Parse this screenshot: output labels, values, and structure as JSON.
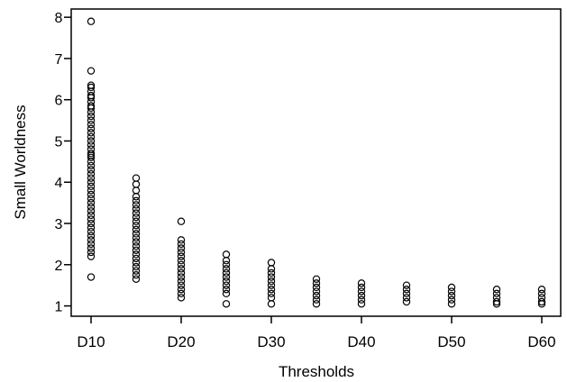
{
  "chart_data": {
    "type": "scatter",
    "title": "",
    "xlabel": "Thresholds",
    "ylabel": "Small Worldness",
    "x_tick_labels": [
      "D10",
      "D20",
      "D30",
      "D40",
      "D50",
      "D60"
    ],
    "y_tick_labels": [
      "1",
      "2",
      "3",
      "4",
      "5",
      "6",
      "7",
      "8"
    ],
    "ylim": [
      0.75,
      8.2
    ],
    "grid": false,
    "legend": "none",
    "marker": "open-circle",
    "colors": {
      "marker": "#000000",
      "axis": "#000000",
      "background": "#ffffff"
    },
    "series": [
      {
        "x": "D10",
        "y": [
          7.9,
          6.7,
          6.35,
          6.3,
          6.2,
          6.1,
          6.05,
          5.95,
          5.85,
          5.8,
          5.7,
          5.6,
          5.5,
          5.4,
          5.3,
          5.2,
          5.1,
          5.0,
          4.9,
          4.8,
          4.7,
          4.65,
          4.6,
          4.5,
          4.4,
          4.3,
          4.2,
          4.1,
          4.0,
          3.9,
          3.8,
          3.7,
          3.6,
          3.5,
          3.4,
          3.3,
          3.2,
          3.1,
          3.0,
          2.9,
          2.8,
          2.7,
          2.6,
          2.5,
          2.4,
          2.3,
          2.2,
          1.7
        ]
      },
      {
        "x": "D15",
        "y": [
          4.1,
          3.95,
          3.8,
          3.65,
          3.55,
          3.45,
          3.35,
          3.25,
          3.15,
          3.05,
          2.95,
          2.85,
          2.75,
          2.65,
          2.55,
          2.45,
          2.35,
          2.25,
          2.15,
          2.05,
          1.95,
          1.85,
          1.75,
          1.65
        ]
      },
      {
        "x": "D20",
        "y": [
          3.05,
          2.6,
          2.5,
          2.4,
          2.3,
          2.2,
          2.1,
          2.0,
          1.9,
          1.8,
          1.7,
          1.6,
          1.5,
          1.4,
          1.3,
          1.2
        ]
      },
      {
        "x": "D25",
        "y": [
          2.25,
          2.1,
          2.0,
          1.9,
          1.8,
          1.7,
          1.6,
          1.5,
          1.4,
          1.3,
          1.05
        ]
      },
      {
        "x": "D30",
        "y": [
          2.05,
          1.9,
          1.8,
          1.7,
          1.6,
          1.5,
          1.4,
          1.3,
          1.2,
          1.05
        ]
      },
      {
        "x": "D35",
        "y": [
          1.65,
          1.55,
          1.45,
          1.35,
          1.25,
          1.15,
          1.05
        ]
      },
      {
        "x": "D40",
        "y": [
          1.55,
          1.45,
          1.35,
          1.25,
          1.15,
          1.05
        ]
      },
      {
        "x": "D45",
        "y": [
          1.5,
          1.4,
          1.3,
          1.2,
          1.1
        ]
      },
      {
        "x": "D50",
        "y": [
          1.45,
          1.35,
          1.25,
          1.15,
          1.05
        ]
      },
      {
        "x": "D55",
        "y": [
          1.4,
          1.3,
          1.2,
          1.1,
          1.05
        ]
      },
      {
        "x": "D60",
        "y": [
          1.4,
          1.3,
          1.2,
          1.1,
          1.05
        ]
      }
    ]
  }
}
